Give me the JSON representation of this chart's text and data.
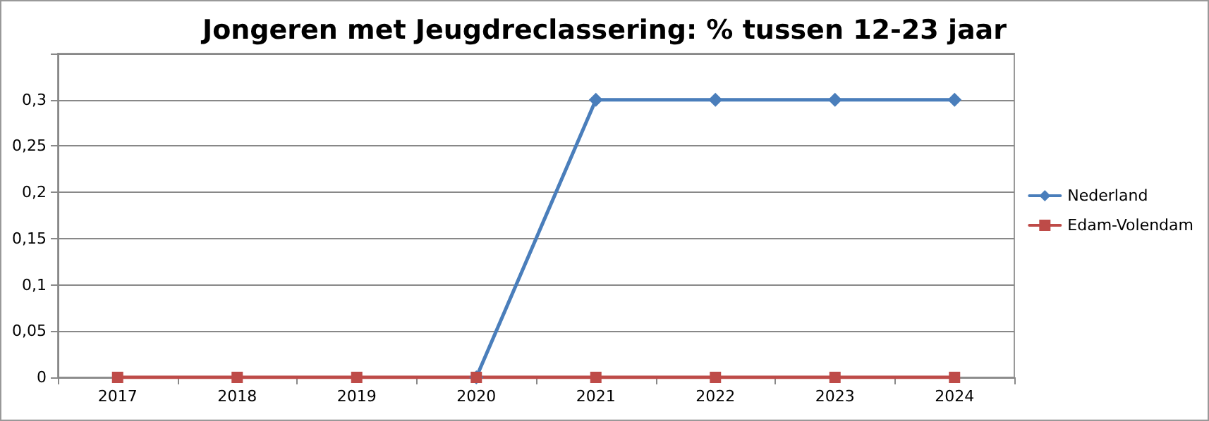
{
  "chart_data": {
    "type": "line",
    "title": "Jongeren met Jeugdreclassering: % tussen 12-23 jaar",
    "categories": [
      "2017",
      "2018",
      "2019",
      "2020",
      "2021",
      "2022",
      "2023",
      "2024"
    ],
    "series": [
      {
        "name": "Nederland",
        "color": "#4a7ebb",
        "marker": "diamond",
        "values": [
          null,
          null,
          null,
          0,
          0.3,
          0.3,
          0.3,
          0.3
        ]
      },
      {
        "name": "Edam-Volendam",
        "color": "#be4b48",
        "marker": "square",
        "values": [
          0,
          0,
          0,
          0,
          0,
          0,
          0,
          0
        ]
      }
    ],
    "ylim": [
      0,
      0.35
    ],
    "yticks": [
      0,
      {
        "value": 0.05,
        "label": "0,05"
      },
      {
        "value": 0.1,
        "label": "0,1"
      },
      {
        "value": 0.15,
        "label": "0,15"
      },
      {
        "value": 0.2,
        "label": "0,2"
      },
      {
        "value": 0.25,
        "label": "0,25"
      },
      {
        "value": 0.3,
        "label": "0,3"
      },
      {
        "value": 0.35,
        "label": null
      }
    ],
    "grid": "y",
    "legend": "right",
    "line_style": "solid"
  }
}
